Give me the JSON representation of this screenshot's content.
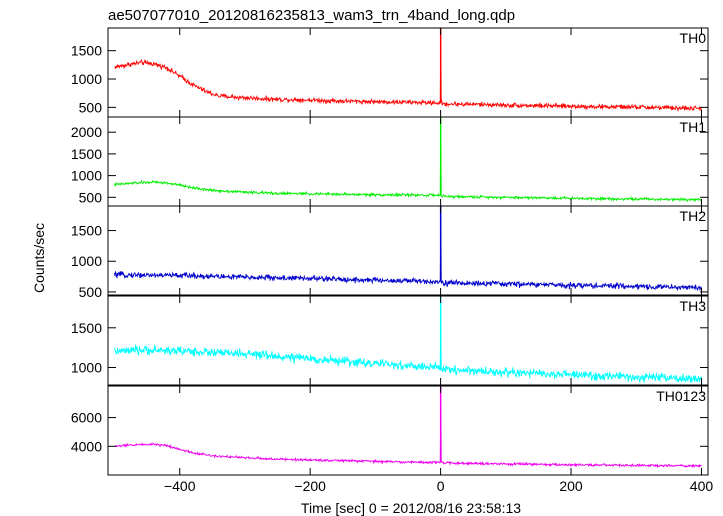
{
  "chart_data": {
    "type": "line",
    "title": "ae507077010_20120816235813_wam3_trn_4band_long.qdp",
    "xlabel": "Time [sec] 0 = 2012/08/16 23:58:13",
    "ylabel": "Counts/sec",
    "xlim": [
      -510,
      410
    ],
    "x_ticks": [
      -400,
      -200,
      0,
      200,
      400
    ],
    "x_tick_labels": [
      "−400",
      "−200",
      "0",
      "200",
      "400"
    ],
    "grid": false,
    "panels": [
      {
        "name": "TH0",
        "color": "#ff0000",
        "ylim": [
          330,
          1900
        ],
        "y_ticks": [
          500,
          1000,
          1500
        ],
        "y_tick_labels": [
          "500",
          "1000",
          "1500"
        ],
        "x": [
          -500,
          -480,
          -460,
          -440,
          -420,
          -400,
          -380,
          -360,
          -340,
          -300,
          -250,
          -200,
          -150,
          -100,
          -50,
          -5,
          0,
          5,
          50,
          100,
          150,
          200,
          250,
          300,
          350,
          400
        ],
        "y": [
          1210,
          1250,
          1290,
          1270,
          1200,
          1050,
          900,
          780,
          700,
          670,
          640,
          630,
          610,
          600,
          590,
          580,
          1900,
          560,
          555,
          540,
          530,
          520,
          510,
          505,
          490,
          480
        ],
        "noise": 40
      },
      {
        "name": "TH1",
        "color": "#00ee00",
        "ylim": [
          300,
          2350
        ],
        "y_ticks": [
          500,
          1000,
          1500,
          2000
        ],
        "y_tick_labels": [
          "500",
          "1000",
          "1500",
          "2000"
        ],
        "x": [
          -500,
          -470,
          -440,
          -420,
          -400,
          -380,
          -350,
          -300,
          -250,
          -200,
          -150,
          -100,
          -50,
          -5,
          0,
          5,
          50,
          100,
          150,
          200,
          250,
          300,
          350,
          400
        ],
        "y": [
          790,
          830,
          850,
          830,
          780,
          720,
          660,
          620,
          590,
          580,
          570,
          560,
          555,
          550,
          2350,
          520,
          510,
          500,
          490,
          480,
          470,
          460,
          455,
          450
        ],
        "noise": 30
      },
      {
        "name": "TH2",
        "color": "#0000cc",
        "ylim": [
          450,
          1900
        ],
        "y_ticks": [
          500,
          1000,
          1500
        ],
        "y_tick_labels": [
          "500",
          "1000",
          "1500"
        ],
        "x": [
          -500,
          -400,
          -300,
          -200,
          -100,
          -5,
          0,
          5,
          100,
          200,
          300,
          400
        ],
        "y": [
          780,
          770,
          740,
          720,
          690,
          670,
          1900,
          650,
          630,
          610,
          590,
          570
        ],
        "noise": 45
      },
      {
        "name": "TH3",
        "color": "#00ffff",
        "ylim": [
          780,
          1900
        ],
        "y_ticks": [
          1000,
          1500
        ],
        "y_tick_labels": [
          "1000",
          "1500"
        ],
        "x": [
          -500,
          -450,
          -400,
          -350,
          -300,
          -250,
          -200,
          -150,
          -100,
          -50,
          -5,
          0,
          5,
          50,
          100,
          150,
          200,
          250,
          300,
          350,
          400
        ],
        "y": [
          1200,
          1220,
          1210,
          1190,
          1170,
          1140,
          1110,
          1080,
          1050,
          1020,
          1000,
          1900,
          980,
          960,
          940,
          920,
          910,
          890,
          880,
          865,
          850
        ],
        "noise": 55
      },
      {
        "name": "TH0123",
        "color": "#ee00ee",
        "ylim": [
          2000,
          8200
        ],
        "y_ticks": [
          4000,
          6000
        ],
        "y_tick_labels": [
          "4000",
          "6000"
        ],
        "x": [
          -500,
          -470,
          -440,
          -420,
          -400,
          -380,
          -350,
          -300,
          -250,
          -200,
          -150,
          -100,
          -50,
          -5,
          0,
          5,
          50,
          100,
          150,
          200,
          250,
          300,
          350,
          400
        ],
        "y": [
          4000,
          4100,
          4150,
          4050,
          3800,
          3550,
          3350,
          3200,
          3100,
          3050,
          3000,
          2950,
          2900,
          2880,
          8200,
          2850,
          2800,
          2770,
          2740,
          2710,
          2690,
          2670,
          2650,
          2640
        ],
        "noise": 80
      }
    ]
  }
}
